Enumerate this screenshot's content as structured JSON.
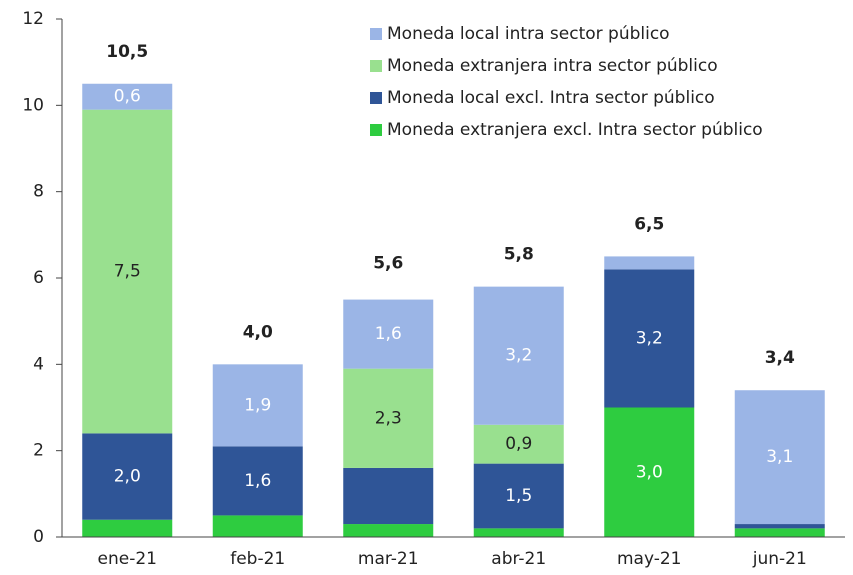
{
  "chart_data": {
    "type": "stacked_bar",
    "categories": [
      "ene-21",
      "feb-21",
      "mar-21",
      "abr-21",
      "may-21",
      "jun-21"
    ],
    "series": [
      {
        "name": "Moneda extranjera excl. Intra sector público",
        "color": "#2ecc40",
        "label_color": "#ffffff",
        "values": [
          0.4,
          0.5,
          0.3,
          0.2,
          3.0,
          0.2
        ],
        "value_labels": [
          null,
          null,
          null,
          null,
          "3,0",
          null
        ]
      },
      {
        "name": "Moneda local excl. Intra sector público",
        "color": "#2f5597",
        "label_color": "#ffffff",
        "values": [
          2.0,
          1.6,
          1.3,
          1.5,
          3.2,
          0.1
        ],
        "value_labels": [
          "2,0",
          "1,6",
          null,
          "1,5",
          "3,2",
          null
        ]
      },
      {
        "name": "Moneda extranjera intra sector público",
        "color": "#99e08f",
        "label_color": "#222222",
        "values": [
          7.5,
          0,
          2.3,
          0.9,
          0,
          0
        ],
        "value_labels": [
          "7,5",
          null,
          "2,3",
          "0,9",
          null,
          null
        ]
      },
      {
        "name": "Moneda local intra sector público",
        "color": "#9bb5e6",
        "label_color": "#ffffff",
        "values": [
          0.6,
          1.9,
          1.6,
          3.2,
          0.3,
          3.1
        ],
        "value_labels": [
          "0,6",
          "1,9",
          "1,6",
          "3,2",
          null,
          "3,1"
        ]
      }
    ],
    "totals": [
      10.5,
      4.0,
      5.6,
      5.8,
      6.5,
      3.4
    ],
    "total_labels": [
      "10,5",
      "4,0",
      "5,6",
      "5,8",
      "6,5",
      "3,4"
    ],
    "ylim": [
      0,
      12
    ],
    "yticks": [
      0,
      2,
      4,
      6,
      8,
      10,
      12
    ],
    "grid": false,
    "legend": "top-right"
  }
}
